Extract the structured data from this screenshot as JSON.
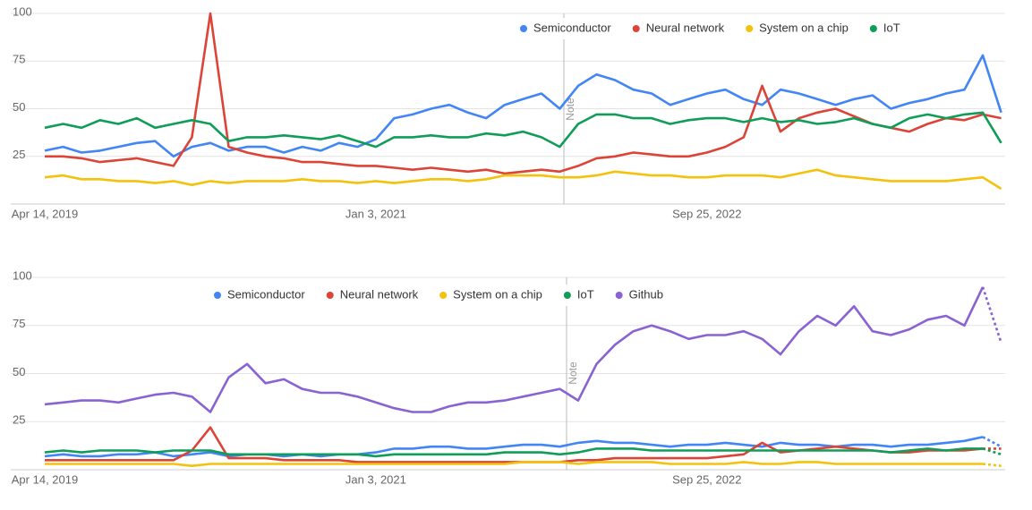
{
  "chart_data": [
    {
      "type": "line",
      "ylim": [
        0,
        100
      ],
      "yticks": [
        25,
        50,
        75,
        100
      ],
      "grid": true,
      "note": "Note",
      "legend": "top-right",
      "dashed_last": false,
      "categories": [
        "Apr 14, 2019",
        null,
        null,
        null,
        null,
        null,
        null,
        null,
        null,
        null,
        null,
        null,
        null,
        null,
        null,
        null,
        null,
        null,
        "Jan 3, 2021",
        null,
        null,
        null,
        null,
        null,
        null,
        null,
        null,
        null,
        null,
        null,
        null,
        null,
        null,
        null,
        null,
        null,
        "Sep 25, 2022",
        null,
        null,
        null,
        null,
        null,
        null,
        null,
        null,
        null,
        null,
        null,
        null,
        null,
        null,
        null,
        null
      ],
      "series": [
        {
          "name": "Semiconductor",
          "color": "#4285f4",
          "values": [
            28,
            30,
            27,
            28,
            30,
            32,
            33,
            25,
            30,
            32,
            28,
            30,
            30,
            27,
            30,
            28,
            32,
            30,
            34,
            45,
            47,
            50,
            52,
            48,
            45,
            52,
            55,
            58,
            50,
            62,
            68,
            65,
            60,
            58,
            52,
            55,
            58,
            60,
            55,
            52,
            60,
            58,
            55,
            52,
            55,
            57,
            50,
            53,
            55,
            58,
            60,
            78,
            48
          ]
        },
        {
          "name": "Neural network",
          "color": "#db4437",
          "values": [
            25,
            25,
            24,
            22,
            23,
            24,
            22,
            20,
            35,
            100,
            30,
            27,
            25,
            24,
            22,
            22,
            21,
            20,
            20,
            19,
            18,
            19,
            18,
            17,
            18,
            16,
            17,
            18,
            17,
            20,
            24,
            25,
            27,
            26,
            25,
            25,
            27,
            30,
            35,
            62,
            38,
            45,
            48,
            50,
            46,
            42,
            40,
            38,
            42,
            45,
            44,
            47,
            45
          ]
        },
        {
          "name": "System on a chip",
          "color": "#f4c20d",
          "values": [
            14,
            15,
            13,
            13,
            12,
            12,
            11,
            12,
            10,
            12,
            11,
            12,
            12,
            12,
            13,
            12,
            12,
            11,
            12,
            11,
            12,
            13,
            13,
            12,
            13,
            15,
            15,
            15,
            14,
            14,
            15,
            17,
            16,
            15,
            15,
            14,
            14,
            15,
            15,
            15,
            14,
            16,
            18,
            15,
            14,
            13,
            12,
            12,
            12,
            12,
            13,
            14,
            8
          ]
        },
        {
          "name": "IoT",
          "color": "#0f9d58",
          "values": [
            40,
            42,
            40,
            44,
            42,
            45,
            40,
            42,
            44,
            42,
            33,
            35,
            35,
            36,
            35,
            34,
            36,
            33,
            30,
            35,
            35,
            36,
            35,
            35,
            37,
            36,
            38,
            35,
            30,
            42,
            47,
            47,
            45,
            45,
            42,
            44,
            45,
            45,
            43,
            45,
            43,
            44,
            42,
            43,
            45,
            42,
            40,
            45,
            47,
            45,
            47,
            48,
            32
          ]
        }
      ]
    },
    {
      "type": "line",
      "ylim": [
        0,
        100
      ],
      "yticks": [
        25,
        50,
        75,
        100
      ],
      "grid": true,
      "note": "Note",
      "legend": "top-left",
      "dashed_last": true,
      "categories": [
        "Apr 14, 2019",
        null,
        null,
        null,
        null,
        null,
        null,
        null,
        null,
        null,
        null,
        null,
        null,
        null,
        null,
        null,
        null,
        null,
        "Jan 3, 2021",
        null,
        null,
        null,
        null,
        null,
        null,
        null,
        null,
        null,
        null,
        null,
        null,
        null,
        null,
        null,
        null,
        null,
        "Sep 25, 2022",
        null,
        null,
        null,
        null,
        null,
        null,
        null,
        null,
        null,
        null,
        null,
        null,
        null,
        null,
        null,
        null
      ],
      "series": [
        {
          "name": "Semiconductor",
          "color": "#4285f4",
          "values": [
            7,
            8,
            7,
            7,
            8,
            8,
            9,
            7,
            8,
            9,
            7,
            8,
            8,
            7,
            8,
            7,
            8,
            8,
            9,
            11,
            11,
            12,
            12,
            11,
            11,
            12,
            13,
            13,
            12,
            14,
            15,
            14,
            14,
            13,
            12,
            13,
            13,
            14,
            13,
            12,
            14,
            13,
            13,
            12,
            13,
            13,
            12,
            13,
            13,
            14,
            15,
            17,
            12
          ]
        },
        {
          "name": "Neural network",
          "color": "#db4437",
          "values": [
            5,
            5,
            5,
            5,
            5,
            5,
            5,
            5,
            10,
            22,
            6,
            6,
            6,
            5,
            5,
            5,
            5,
            4,
            4,
            4,
            4,
            4,
            4,
            4,
            4,
            4,
            4,
            4,
            4,
            5,
            5,
            6,
            6,
            6,
            6,
            6,
            6,
            7,
            8,
            14,
            9,
            10,
            11,
            12,
            11,
            10,
            9,
            9,
            10,
            10,
            10,
            11,
            11
          ]
        },
        {
          "name": "System on a chip",
          "color": "#f4c20d",
          "values": [
            3,
            3,
            3,
            3,
            3,
            3,
            3,
            3,
            2,
            3,
            3,
            3,
            3,
            3,
            3,
            3,
            3,
            3,
            3,
            3,
            3,
            3,
            3,
            3,
            3,
            3,
            4,
            4,
            4,
            3,
            4,
            4,
            4,
            4,
            3,
            3,
            3,
            3,
            4,
            3,
            3,
            4,
            4,
            3,
            3,
            3,
            3,
            3,
            3,
            3,
            3,
            3,
            2
          ]
        },
        {
          "name": "IoT",
          "color": "#0f9d58",
          "values": [
            9,
            10,
            9,
            10,
            10,
            10,
            9,
            10,
            10,
            10,
            8,
            8,
            8,
            8,
            8,
            8,
            8,
            8,
            7,
            8,
            8,
            8,
            8,
            8,
            8,
            9,
            9,
            9,
            8,
            9,
            11,
            11,
            11,
            10,
            10,
            10,
            10,
            10,
            10,
            10,
            10,
            10,
            10,
            10,
            10,
            10,
            9,
            10,
            11,
            10,
            11,
            11,
            8
          ]
        },
        {
          "name": "Github",
          "color": "#8a63d2",
          "values": [
            34,
            35,
            36,
            36,
            35,
            37,
            39,
            40,
            38,
            30,
            48,
            55,
            45,
            47,
            42,
            40,
            40,
            38,
            35,
            32,
            30,
            30,
            33,
            35,
            35,
            36,
            38,
            40,
            42,
            36,
            55,
            65,
            72,
            75,
            72,
            68,
            70,
            70,
            72,
            68,
            60,
            72,
            80,
            75,
            85,
            72,
            70,
            73,
            78,
            80,
            75,
            95,
            66
          ]
        }
      ]
    }
  ]
}
